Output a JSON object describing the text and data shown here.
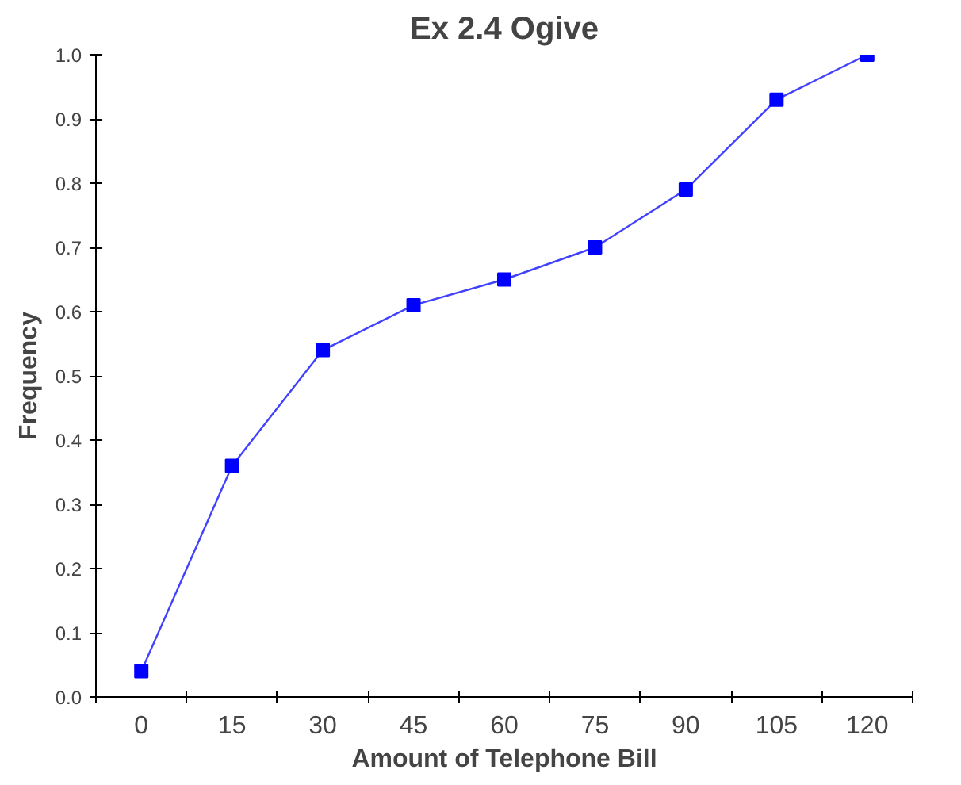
{
  "chart_data": {
    "type": "line",
    "title": "Ex 2.4 Ogive",
    "xlabel": "Amount of Telephone Bill",
    "ylabel": "Frequency",
    "categories": [
      "0",
      "15",
      "30",
      "45",
      "60",
      "75",
      "90",
      "105",
      "120"
    ],
    "series": [
      {
        "color": "#0000ff",
        "values": [
          0.04,
          0.36,
          0.54,
          0.61,
          0.65,
          0.7,
          0.79,
          0.93,
          1.0
        ]
      }
    ],
    "ylim": [
      0,
      1
    ],
    "yticks": [
      {
        "value": 0,
        "label": "0.0"
      },
      0.1,
      0.2,
      0.3,
      0.4,
      0.5,
      0.6,
      0.7,
      0.8,
      0.9,
      {
        "value": 1,
        "label": "1.0"
      }
    ],
    "grid": false,
    "marker": "square",
    "line_style": "solid"
  }
}
